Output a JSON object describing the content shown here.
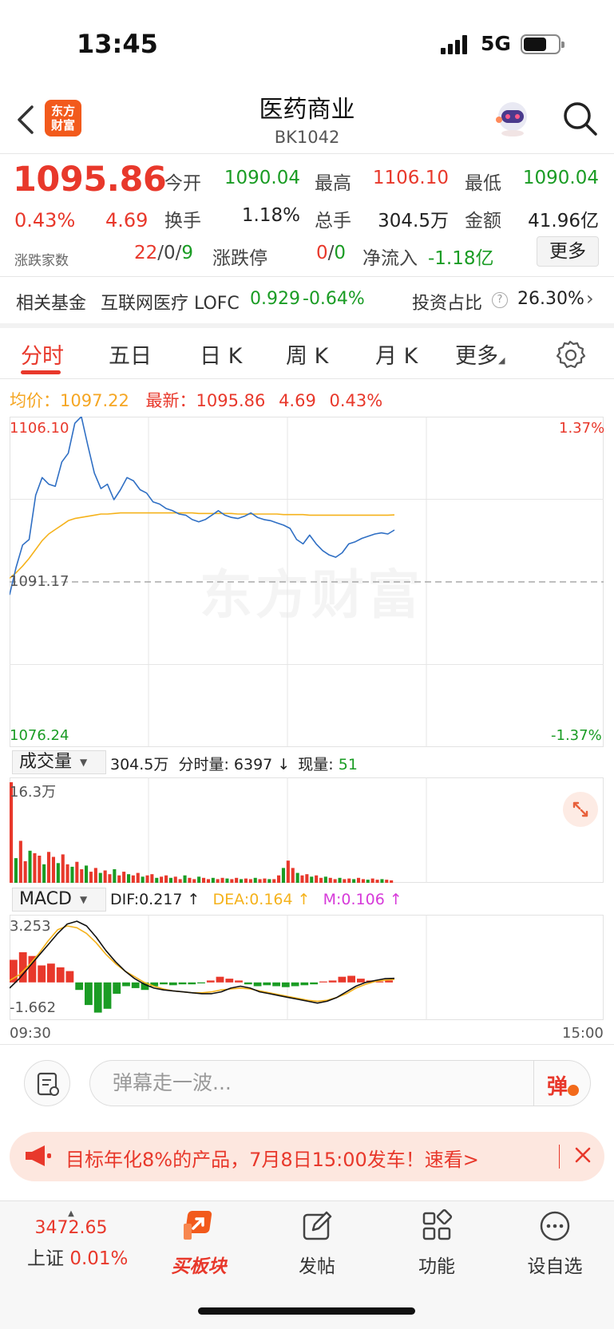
{
  "status_bar": {
    "time": "13:45",
    "network": "5G"
  },
  "header": {
    "brand_line1": "东方",
    "brand_line2": "财富",
    "title": "医药商业",
    "code": "BK1042"
  },
  "quote": {
    "price": "1095.86",
    "change_pct": "0.43%",
    "change_val": "4.69",
    "adv_decl_label": "涨跌家数",
    "adv_decl_up": "22",
    "adv_decl_flat": "/0/",
    "adv_decl_down": "9",
    "open_label": "今开",
    "open": "1090.04",
    "high_label": "最高",
    "high": "1106.10",
    "low_label": "最低",
    "low": "1090.04",
    "turnover_label": "换手",
    "turnover": "1.18%",
    "volume_label": "总手",
    "volume": "304.5万",
    "amount_label": "金额",
    "amount": "41.96亿",
    "limit_label": "涨跌停",
    "limit_up": "0",
    "limit_sep": "/",
    "limit_down": "0",
    "netflow_label": "净流入",
    "netflow": "-1.18亿",
    "more_label": "更多"
  },
  "fund": {
    "label": "相关基金",
    "name": "互联网医疗 LOFC",
    "price": "0.929",
    "change": "-0.64%",
    "ratio_label": "投资占比",
    "ratio": "26.30%"
  },
  "tabs": [
    "分时",
    "五日",
    "日 K",
    "周 K",
    "月 K",
    "更多"
  ],
  "chart_header": {
    "avg_label": "均价：",
    "avg_value": "1097.22",
    "latest_label": "最新：",
    "latest_value": "1095.86",
    "latest_change": "4.69",
    "latest_pct": "0.43%"
  },
  "chart_labels": {
    "top_price": "1106.10",
    "top_pct": "1.37%",
    "base_price": "1091.17",
    "bottom_price": "1076.24",
    "bottom_pct": "-1.37%",
    "watermark": "东方财富"
  },
  "volume": {
    "select_label": "成交量",
    "total": "304.5万",
    "tick_label": "分时量:",
    "tick_value": "6397",
    "now_label": "现量:",
    "now_value": "51",
    "max_label": "16.3万"
  },
  "macd": {
    "select_label": "MACD",
    "dif": "DIF:0.217 ↑",
    "dea": "DEA:0.164 ↑",
    "m": "M:0.106 ↑",
    "max_label": "3.253",
    "min_label": "-1.662",
    "time_start": "09:30",
    "time_end": "15:00"
  },
  "danmu": {
    "placeholder": "弹幕走一波...",
    "send_label": "弹"
  },
  "promo": {
    "text": "目标年化8%的产品，7月8日15:00发车！速看>"
  },
  "bottom_nav": {
    "index_value": "3472.65",
    "index_name": "上证",
    "index_change": "0.01%",
    "buy_label": "买板块",
    "post_label": "发帖",
    "func_label": "功能",
    "watch_label": "设自选"
  },
  "colors": {
    "up": "#e8382b",
    "down": "#1a9c24",
    "price_line": "#2f6fc4",
    "avg_line": "#f5b21b",
    "dea": "#f5b21b",
    "m": "#d63ad9"
  },
  "chart_data": {
    "type": "line",
    "x_start": "09:30",
    "x_end": "15:00",
    "ylim": [
      1076.24,
      1106.1
    ],
    "base": 1091.17,
    "series": [
      {
        "values": [
          1090.0,
          1092.5,
          1094.5,
          1095.0,
          1099.0,
          1100.6,
          1100.0,
          1099.8,
          1102.0,
          1102.8,
          1105.5,
          1106.1,
          1103.5,
          1101.0,
          1099.6,
          1100.0,
          1098.6,
          1099.5,
          1100.6,
          1100.3,
          1099.5,
          1099.2,
          1098.4,
          1098.2,
          1097.8,
          1097.6,
          1097.3,
          1097.2,
          1096.8,
          1096.6,
          1096.8,
          1097.2,
          1097.6,
          1097.2,
          1097.0,
          1096.9,
          1097.1,
          1097.4,
          1097.0,
          1096.8,
          1096.7,
          1096.5,
          1096.3,
          1096.0,
          1095.0,
          1094.6,
          1095.4,
          1094.6,
          1094.0,
          1093.6,
          1093.4,
          1093.8,
          1094.6,
          1094.8,
          1095.1,
          1095.3,
          1095.5,
          1095.6,
          1095.5,
          1095.86
        ]
      },
      {
        "values": [
          1091.5,
          1092.0,
          1092.6,
          1093.3,
          1094.1,
          1094.9,
          1095.5,
          1095.9,
          1096.3,
          1096.7,
          1096.9,
          1097.0,
          1097.1,
          1097.2,
          1097.3,
          1097.3,
          1097.35,
          1097.4,
          1097.4,
          1097.4,
          1097.4,
          1097.4,
          1097.4,
          1097.4,
          1097.4,
          1097.4,
          1097.4,
          1097.4,
          1097.4,
          1097.35,
          1097.35,
          1097.35,
          1097.35,
          1097.35,
          1097.35,
          1097.3,
          1097.3,
          1097.3,
          1097.3,
          1097.3,
          1097.3,
          1097.3,
          1097.25,
          1097.25,
          1097.25,
          1097.25,
          1097.2,
          1097.2,
          1097.2,
          1097.2,
          1097.2,
          1097.2,
          1097.2,
          1097.2,
          1097.2,
          1097.2,
          1097.2,
          1097.2,
          1097.2,
          1097.22
        ]
      }
    ],
    "volume_values": [
      16.3,
      4.0,
      6.8,
      3.5,
      5.2,
      4.8,
      4.4,
      3.0,
      5.0,
      4.2,
      3.2,
      4.6,
      3.0,
      2.6,
      3.4,
      2.2,
      2.8,
      1.8,
      2.4,
      1.6,
      2.0,
      1.4,
      2.2,
      1.2,
      1.8,
      1.4,
      1.2,
      1.6,
      1.0,
      1.2,
      1.4,
      0.8,
      1.0,
      1.2,
      0.8,
      1.0,
      0.6,
      1.2,
      0.8,
      0.6,
      1.0,
      0.8,
      0.6,
      0.8,
      0.6,
      0.8,
      0.7,
      0.6,
      0.8,
      0.6,
      0.7,
      0.6,
      0.8,
      0.6,
      0.7,
      0.6,
      0.6,
      1.2,
      2.4,
      3.6,
      2.4,
      1.6,
      1.2,
      1.4,
      1.0,
      1.2,
      0.8,
      1.0,
      0.8,
      0.6,
      0.8,
      0.6,
      0.7,
      0.6,
      0.8,
      0.6,
      0.5,
      0.7,
      0.5,
      0.6,
      0.5,
      0.4
    ],
    "macd_dif": [
      -0.3,
      0.2,
      0.8,
      1.4,
      2.0,
      2.6,
      3.1,
      3.25,
      3.0,
      2.4,
      1.7,
      1.1,
      0.6,
      0.2,
      -0.1,
      -0.3,
      -0.4,
      -0.45,
      -0.5,
      -0.55,
      -0.6,
      -0.6,
      -0.5,
      -0.3,
      -0.2,
      -0.3,
      -0.5,
      -0.6,
      -0.7,
      -0.8,
      -0.9,
      -1.0,
      -1.1,
      -1.0,
      -0.8,
      -0.5,
      -0.2,
      0.0,
      0.1,
      0.2,
      0.217
    ],
    "macd_dea": [
      0.1,
      0.4,
      0.9,
      1.5,
      2.2,
      2.8,
      3.0,
      2.9,
      2.6,
      2.1,
      1.5,
      1.0,
      0.6,
      0.3,
      0.0,
      -0.2,
      -0.35,
      -0.45,
      -0.5,
      -0.55,
      -0.55,
      -0.5,
      -0.4,
      -0.35,
      -0.3,
      -0.35,
      -0.45,
      -0.55,
      -0.65,
      -0.75,
      -0.85,
      -0.95,
      -1.0,
      -0.95,
      -0.8,
      -0.6,
      -0.3,
      -0.1,
      0.05,
      0.12,
      0.164
    ],
    "macd_hist": [
      1.2,
      1.6,
      1.4,
      0.9,
      1.0,
      0.8,
      0.6,
      -0.4,
      -1.2,
      -1.6,
      -1.4,
      -0.6,
      -0.2,
      -0.3,
      -0.4,
      -0.2,
      -0.1,
      -0.15,
      -0.1,
      -0.1,
      -0.05,
      0.1,
      0.3,
      0.2,
      0.1,
      -0.1,
      -0.2,
      -0.15,
      -0.2,
      -0.25,
      -0.2,
      -0.15,
      -0.1,
      0.05,
      0.1,
      0.3,
      0.35,
      0.2,
      0.1,
      0.05,
      0.106
    ],
    "macd_ylim": [
      -1.662,
      3.253
    ]
  }
}
